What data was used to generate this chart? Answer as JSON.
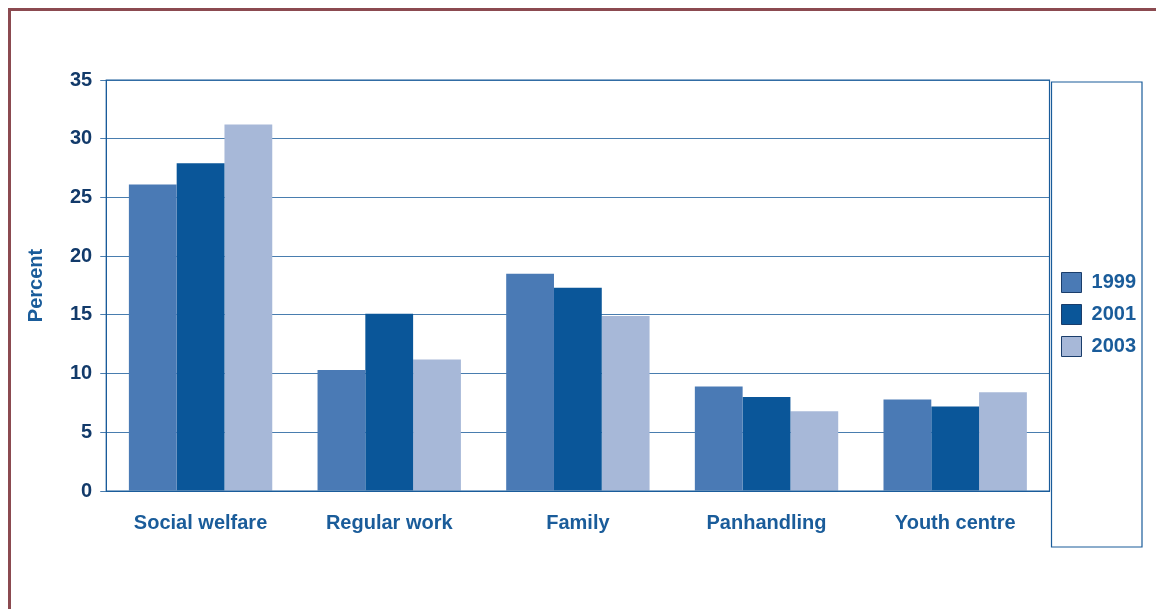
{
  "chart_data": {
    "type": "bar",
    "ylabel": "Percent",
    "categories": [
      "Social welfare",
      "Regular work",
      "Family",
      "Panhandling",
      "Youth centre"
    ],
    "series": [
      {
        "name": "1999",
        "color": "#4a7ab5",
        "values": [
          26.1,
          10.3,
          18.5,
          8.9,
          7.8
        ]
      },
      {
        "name": "2001",
        "color": "#0a5699",
        "values": [
          27.9,
          15.1,
          17.3,
          8.0,
          7.2
        ]
      },
      {
        "name": "2003",
        "color": "#a7b8d8",
        "values": [
          31.2,
          11.2,
          14.9,
          6.8,
          8.4
        ]
      }
    ],
    "ylim": [
      0,
      35
    ],
    "yticks": [
      0,
      5,
      10,
      15,
      20,
      25,
      30,
      35
    ],
    "grid": "y",
    "legend": "right"
  }
}
